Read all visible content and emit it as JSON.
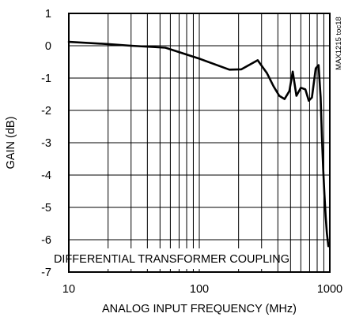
{
  "chart_data": {
    "type": "line",
    "xlabel": "ANALOG INPUT FREQUENCY (MHz)",
    "ylabel": "GAIN (dB)",
    "x_scale": "log",
    "xlim": [
      10,
      1000
    ],
    "ylim": [
      -7,
      1
    ],
    "x_ticks": [
      10,
      100,
      1000
    ],
    "x_tick_labels": [
      "10",
      "100",
      "1000"
    ],
    "y_ticks": [
      1,
      0,
      -1,
      -2,
      -3,
      -4,
      -5,
      -6,
      -7
    ],
    "y_tick_labels": [
      "1",
      "0",
      "-1",
      "-2",
      "-3",
      "-4",
      "-5",
      "-6",
      "-7"
    ],
    "grid": true,
    "annotation": "DIFFERENTIAL TRANSFORMER COUPLING",
    "figure_id": "MAX1215 toc18",
    "series": [
      {
        "x": [
          10,
          20,
          30,
          55,
          100,
          170,
          210,
          280,
          330,
          370,
          410,
          450,
          490,
          520,
          555,
          600,
          650,
          690,
          730,
          780,
          820,
          850,
          870,
          890,
          910,
          930,
          950,
          975
        ],
        "y": [
          0.12,
          0.05,
          0.0,
          -0.06,
          -0.4,
          -0.74,
          -0.73,
          -0.45,
          -0.85,
          -1.25,
          -1.55,
          -1.65,
          -1.4,
          -0.8,
          -1.55,
          -1.3,
          -1.35,
          -1.7,
          -1.6,
          -0.7,
          -0.6,
          -1.6,
          -2.8,
          -3.8,
          -4.6,
          -5.3,
          -5.8,
          -6.2
        ]
      }
    ]
  }
}
